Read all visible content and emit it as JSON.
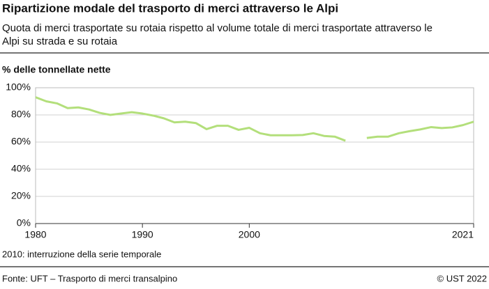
{
  "chart_data": {
    "type": "line",
    "title": "Ripartizione modale del trasporto di merci attraverso le Alpi",
    "subtitle": "Quota di merci trasportate su rotaia rispetto al volume totale di merci trasportate attraverso le Alpi su strada e su rotaia",
    "y_label": "% delle tonnellate nette",
    "note": "2010: interruzione della serie temporale",
    "source": "Fonte: UFT – Trasporto di merci transalpino",
    "copyright": "© UST 2022",
    "x": [
      1980,
      1981,
      1982,
      1983,
      1984,
      1985,
      1986,
      1987,
      1988,
      1989,
      1990,
      1991,
      1992,
      1993,
      1994,
      1995,
      1996,
      1997,
      1998,
      1999,
      2000,
      2001,
      2002,
      2003,
      2004,
      2005,
      2006,
      2007,
      2008,
      2009,
      2010,
      2011,
      2012,
      2013,
      2014,
      2015,
      2016,
      2017,
      2018,
      2019,
      2020,
      2021
    ],
    "series": [
      {
        "color": "#b3df7b",
        "values": [
          93,
          90,
          88.5,
          85,
          85.5,
          84,
          81.5,
          80,
          81,
          82,
          81,
          79.5,
          77.5,
          74.5,
          75,
          74,
          69.5,
          72,
          72,
          69,
          70.5,
          66.5,
          65,
          65,
          65,
          65.2,
          66.5,
          64.5,
          64,
          61,
          null,
          63,
          64,
          64,
          66.5,
          68,
          69.3,
          71,
          70.3,
          70.8,
          72.5,
          75
        ]
      }
    ],
    "xlim": [
      1980,
      2021
    ],
    "xticks": [
      1980,
      1990,
      2000,
      2021
    ],
    "ylim": [
      0,
      100
    ],
    "yticks": [
      {
        "value": 0,
        "label": "0%"
      },
      {
        "value": 20,
        "label": "20%"
      },
      {
        "value": 40,
        "label": "40%"
      },
      {
        "value": 60,
        "label": "60%"
      },
      {
        "value": 80,
        "label": "80%"
      },
      {
        "value": 100,
        "label": "100%"
      }
    ],
    "grid": true
  }
}
